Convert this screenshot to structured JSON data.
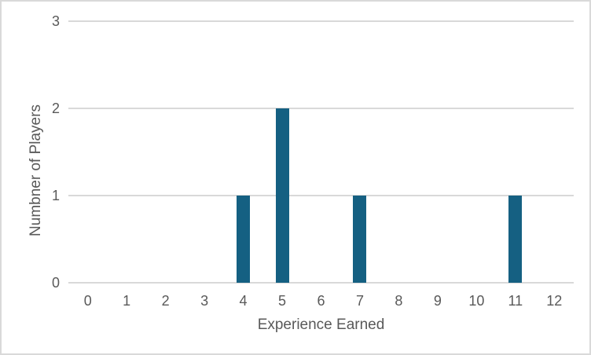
{
  "chart_data": {
    "type": "bar",
    "title": "",
    "xlabel": "Experience Earned",
    "ylabel": "Numbner of Players",
    "categories": [
      "0",
      "1",
      "2",
      "3",
      "4",
      "5",
      "6",
      "7",
      "8",
      "9",
      "10",
      "11",
      "12"
    ],
    "values": [
      0,
      0,
      0,
      0,
      1,
      2,
      0,
      1,
      0,
      0,
      0,
      1,
      0
    ],
    "ylim": [
      0,
      3
    ],
    "yticks": [
      0,
      1,
      2,
      3
    ],
    "grid": "horizontal",
    "legend": "none",
    "colors": {
      "bar_fill": "#156082",
      "gridline": "#d9d9d9",
      "axis_text": "#595959",
      "border": "#d9d9d9",
      "background": "#ffffff"
    }
  }
}
